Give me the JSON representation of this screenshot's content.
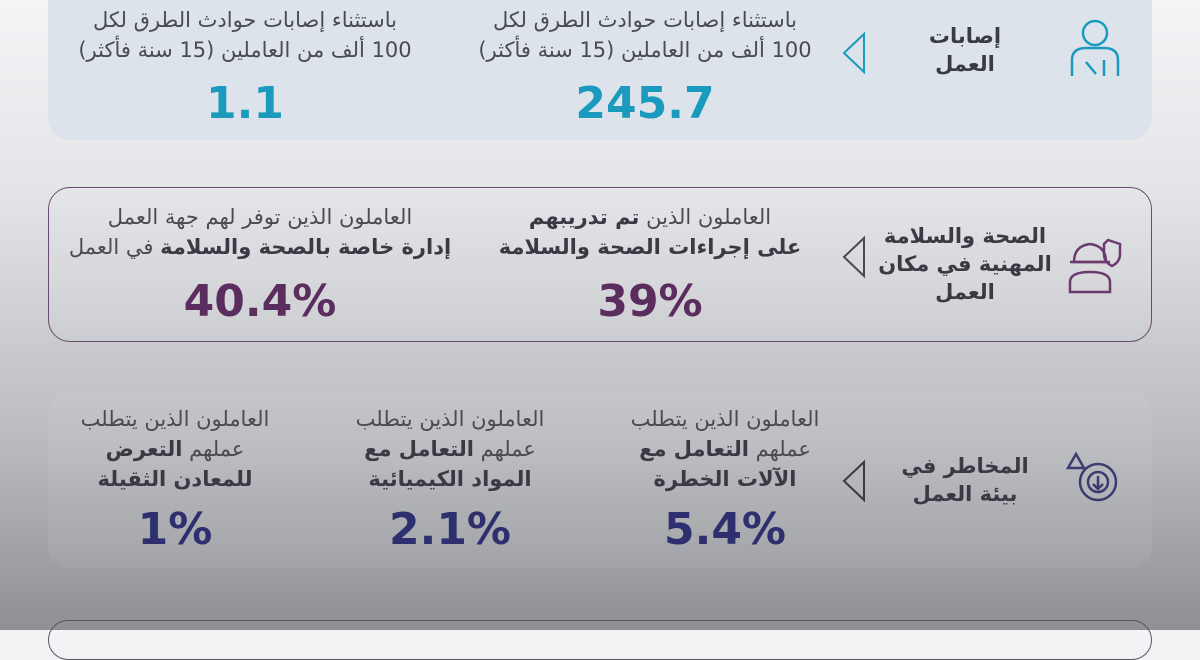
{
  "sections": [
    {
      "label": [
        "إصابات",
        "العمل"
      ],
      "color": "#1a9bbd",
      "stats": [
        {
          "lines": [
            [
              {
                "text": "باستثناء إصابات حوادث الطرق لكل",
                "bold": false
              }
            ],
            [
              {
                "text": "100 ألف من العاملين (15 سنة فأكثر)",
                "bold": false
              }
            ]
          ],
          "value": "245.7"
        },
        {
          "lines": [
            [
              {
                "text": "باستثناء إصابات حوادث الطرق لكل",
                "bold": false
              }
            ],
            [
              {
                "text": "100 ألف من العاملين (15 سنة فأكثر)",
                "bold": false
              }
            ]
          ],
          "value": "1.1"
        }
      ]
    },
    {
      "label": [
        "الصحة والسلامة",
        "المهنية في مكان",
        "العمل"
      ],
      "color": "#5a2d5e",
      "stats": [
        {
          "lines": [
            [
              {
                "text": "العاملون الذين ",
                "bold": false
              },
              {
                "text": "تم تدريبهم",
                "bold": true
              }
            ],
            [
              {
                "text": "على إجراءات الصحة والسلامة",
                "bold": true
              }
            ]
          ],
          "value": "39%"
        },
        {
          "lines": [
            [
              {
                "text": "العاملون الذين توفر لهم جهة العمل",
                "bold": false
              }
            ],
            [
              {
                "text": "إدارة خاصة بالصحة والسلامة",
                "bold": true
              },
              {
                "text": " في العمل",
                "bold": false
              }
            ]
          ],
          "value": "40.4%"
        }
      ]
    },
    {
      "label": [
        "المخاطر في",
        "بيئة العمل"
      ],
      "color": "#2d2f6e",
      "stats": [
        {
          "lines": [
            [
              {
                "text": "العاملون الذين يتطلب",
                "bold": false
              }
            ],
            [
              {
                "text": "عملهم ",
                "bold": false
              },
              {
                "text": "التعامل مع",
                "bold": true
              }
            ],
            [
              {
                "text": "الآلات الخطرة",
                "bold": true
              }
            ]
          ],
          "value": "5.4%"
        },
        {
          "lines": [
            [
              {
                "text": "العاملون الذين يتطلب",
                "bold": false
              }
            ],
            [
              {
                "text": "عملهم ",
                "bold": false
              },
              {
                "text": "التعامل مع",
                "bold": true
              }
            ],
            [
              {
                "text": "المواد الكيميائية",
                "bold": true
              }
            ]
          ],
          "value": "2.1%"
        },
        {
          "lines": [
            [
              {
                "text": "العاملون الذين يتطلب",
                "bold": false
              }
            ],
            [
              {
                "text": "عملهم ",
                "bold": false
              },
              {
                "text": "التعرض",
                "bold": true
              }
            ],
            [
              {
                "text": "للمعادن الثقيلة",
                "bold": true
              }
            ]
          ],
          "value": "1%"
        }
      ]
    }
  ]
}
